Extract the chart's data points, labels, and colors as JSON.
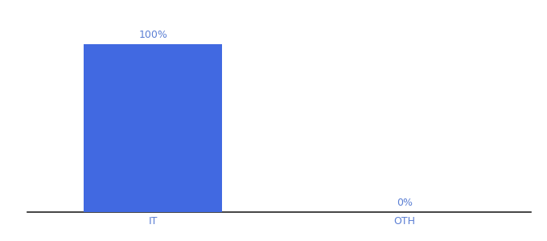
{
  "categories": [
    "IT",
    "OTH"
  ],
  "values": [
    100,
    0
  ],
  "bar_color": "#4169e1",
  "label_color": "#5b7fd4",
  "label_fontsize": 9,
  "tick_fontsize": 9,
  "tick_color": "#5b7fd4",
  "ylim": [
    0,
    115
  ],
  "xlim": [
    -0.5,
    1.5
  ],
  "bar_width": 0.55,
  "background_color": "#ffffff",
  "axis_line_color": "#222222",
  "label_values": [
    "100%",
    "0%"
  ],
  "label_offsets": [
    2.5,
    2.5
  ]
}
